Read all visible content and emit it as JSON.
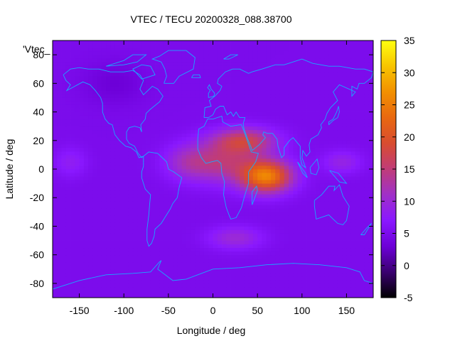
{
  "chart_data": {
    "type": "heatmap",
    "title": "VTEC / TECU 20200328_088.38700",
    "xlabel": "Longitude / deg",
    "ylabel": "Latitude / deg",
    "series_key": "'Vtec_",
    "xlim": [
      -180,
      180
    ],
    "ylim": [
      -90,
      90
    ],
    "x_ticks": [
      -150,
      -100,
      -50,
      0,
      50,
      100,
      150
    ],
    "y_ticks": [
      -80,
      -60,
      -40,
      -20,
      0,
      20,
      40,
      60,
      80
    ],
    "colorbar": {
      "range": [
        -5,
        35
      ],
      "ticks": [
        -5,
        0,
        5,
        10,
        15,
        20,
        25,
        30,
        35
      ],
      "palette": [
        "#000000",
        "#3a0070",
        "#6d00d8",
        "#8a18ff",
        "#a030c8",
        "#c03c78",
        "#d84c30",
        "#e86810",
        "#f29000",
        "#f8c400",
        "#ffff10"
      ]
    },
    "field": {
      "background": 5,
      "peaks": [
        {
          "lon": 60,
          "lat": -5,
          "amp": 20,
          "slon": 28,
          "slat": 11
        },
        {
          "lon": 35,
          "lat": 20,
          "amp": 11,
          "slon": 35,
          "slat": 9
        },
        {
          "lon": 10,
          "lat": 5,
          "amp": 9,
          "slon": 42,
          "slat": 14
        },
        {
          "lon": -30,
          "lat": 5,
          "amp": 4,
          "slon": 25,
          "slat": 12
        },
        {
          "lon": 145,
          "lat": 5,
          "amp": 4,
          "slon": 22,
          "slat": 8
        },
        {
          "lon": -160,
          "lat": 5,
          "amp": 3,
          "slon": 18,
          "slat": 10
        },
        {
          "lon": 25,
          "lat": -48,
          "amp": 5,
          "slon": 30,
          "slat": 8
        },
        {
          "lon": -110,
          "lat": 60,
          "amp": -2,
          "slon": 35,
          "slat": 15
        }
      ]
    }
  }
}
